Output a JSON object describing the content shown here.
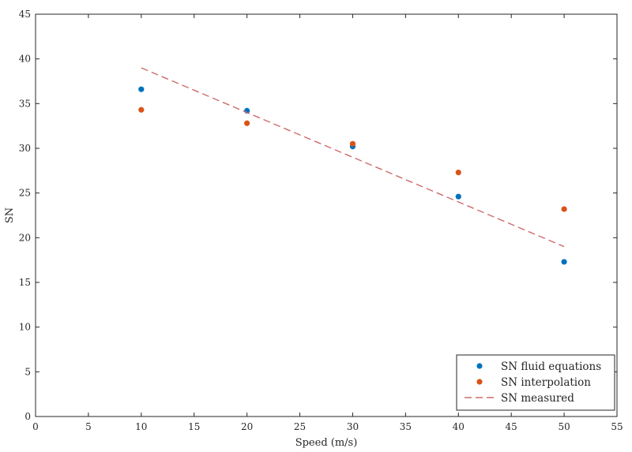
{
  "chart_data": {
    "type": "scatter",
    "xlabel": "Speed (m/s)",
    "ylabel": "SN",
    "xlim": [
      0,
      55
    ],
    "ylim": [
      0,
      45
    ],
    "xticks": [
      0,
      5,
      10,
      15,
      20,
      25,
      30,
      35,
      40,
      45,
      50,
      55
    ],
    "yticks": [
      0,
      5,
      10,
      15,
      20,
      25,
      30,
      35,
      40,
      45
    ],
    "grid": false,
    "legend_position": "bottom-right",
    "series": [
      {
        "name": "SN fluid equations",
        "kind": "scatter",
        "color": "#0072BD",
        "x": [
          10,
          20,
          30,
          40,
          50
        ],
        "y": [
          36.6,
          34.2,
          30.2,
          24.6,
          17.3
        ]
      },
      {
        "name": "SN interpolation",
        "kind": "scatter",
        "color": "#D95319",
        "x": [
          10,
          20,
          30,
          40,
          50
        ],
        "y": [
          34.3,
          32.8,
          30.5,
          27.3,
          23.2
        ]
      },
      {
        "name": "SN measured",
        "kind": "line",
        "style": "dashed",
        "color": "#CD6B6B",
        "x": [
          10,
          50
        ],
        "y": [
          39,
          19
        ]
      }
    ]
  }
}
